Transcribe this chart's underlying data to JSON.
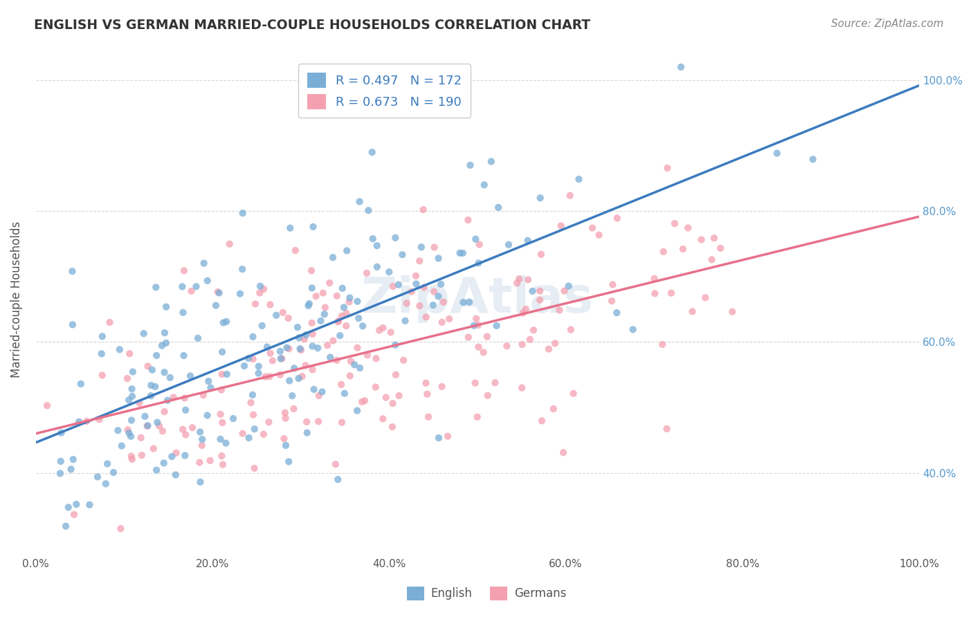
{
  "title": "ENGLISH VS GERMAN MARRIED-COUPLE HOUSEHOLDS CORRELATION CHART",
  "source": "Source: ZipAtlas.com",
  "xlabel": "",
  "ylabel": "Married-couple Households",
  "xmin": 0.0,
  "xmax": 1.0,
  "ymin": 0.28,
  "ymax": 1.05,
  "english_R": 0.497,
  "english_N": 172,
  "german_R": 0.673,
  "german_N": 190,
  "english_color": "#7aaed6",
  "german_color": "#f4a0b0",
  "english_line_color": "#3b7bbf",
  "german_line_color": "#e8708a",
  "background_color": "#ffffff",
  "grid_color": "#cccccc",
  "title_color": "#333333",
  "legend_text_color": "#3b7bbf",
  "watermark": "ZipAtlas",
  "english_slope": 0.52,
  "english_intercept": 0.455,
  "german_slope": 0.38,
  "german_intercept": 0.44,
  "tick_label_color_right": "#5599cc",
  "tick_label_color_bottom": "#444444"
}
